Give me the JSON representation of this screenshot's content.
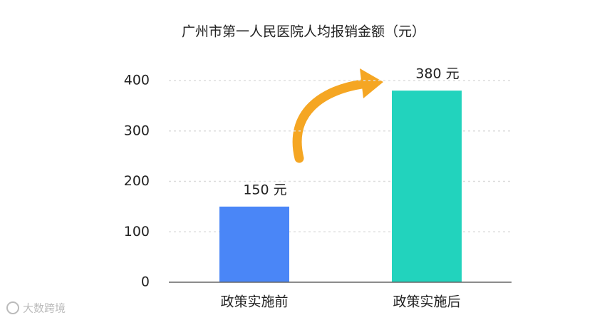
{
  "chart_data": {
    "type": "bar",
    "title": "广州市第一人民医院人均报销金额（元）",
    "categories": [
      "政策实施前",
      "政策实施后"
    ],
    "values": [
      150,
      380
    ],
    "value_labels": [
      "150 元",
      "380 元"
    ],
    "colors": [
      "#4a86f7",
      "#22d3bd"
    ],
    "ylim": [
      0,
      400
    ],
    "yticks": [
      0,
      100,
      200,
      300,
      400
    ],
    "grid": true,
    "watermark": "大数跨境"
  }
}
